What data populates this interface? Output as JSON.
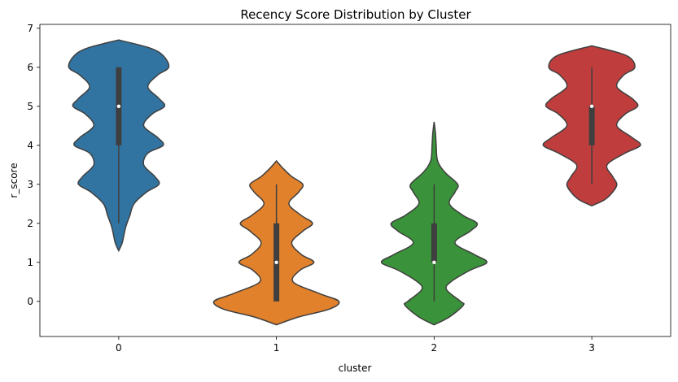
{
  "chart_data": {
    "type": "violin",
    "title": "Recency Score Distribution by Cluster",
    "xlabel": "cluster",
    "ylabel": "r_score",
    "categories": [
      "0",
      "1",
      "2",
      "3"
    ],
    "ylim": [
      -0.9,
      7.1
    ],
    "yticks": [
      0,
      1,
      2,
      3,
      4,
      5,
      6,
      7
    ],
    "grid": false,
    "colors": [
      "#3274a1",
      "#e1812c",
      "#3a923a",
      "#c03d3e"
    ],
    "series": [
      {
        "category": "0",
        "profile": [
          [
            1.3,
            0.0
          ],
          [
            1.5,
            0.05
          ],
          [
            1.9,
            0.1
          ],
          [
            2.2,
            0.16
          ],
          [
            2.5,
            0.22
          ],
          [
            2.8,
            0.4
          ],
          [
            3.0,
            0.58
          ],
          [
            3.2,
            0.52
          ],
          [
            3.5,
            0.36
          ],
          [
            3.8,
            0.42
          ],
          [
            4.0,
            0.64
          ],
          [
            4.2,
            0.56
          ],
          [
            4.5,
            0.36
          ],
          [
            4.8,
            0.48
          ],
          [
            5.0,
            0.66
          ],
          [
            5.2,
            0.58
          ],
          [
            5.5,
            0.42
          ],
          [
            5.8,
            0.56
          ],
          [
            6.0,
            0.72
          ],
          [
            6.3,
            0.64
          ],
          [
            6.5,
            0.44
          ],
          [
            6.7,
            0.0
          ]
        ],
        "q1": 4,
        "median": 5,
        "q3": 6,
        "whisker_low": 2,
        "whisker_high": 6
      },
      {
        "category": "1",
        "profile": [
          [
            -0.6,
            0.0
          ],
          [
            -0.4,
            0.32
          ],
          [
            -0.2,
            0.76
          ],
          [
            0.0,
            0.9
          ],
          [
            0.2,
            0.62
          ],
          [
            0.5,
            0.24
          ],
          [
            0.8,
            0.34
          ],
          [
            1.0,
            0.54
          ],
          [
            1.2,
            0.36
          ],
          [
            1.5,
            0.22
          ],
          [
            1.8,
            0.38
          ],
          [
            2.0,
            0.52
          ],
          [
            2.2,
            0.36
          ],
          [
            2.5,
            0.18
          ],
          [
            2.8,
            0.32
          ],
          [
            3.0,
            0.38
          ],
          [
            3.2,
            0.22
          ],
          [
            3.4,
            0.1
          ],
          [
            3.6,
            0.0
          ]
        ],
        "q1": 0,
        "median": 1,
        "q3": 2,
        "whisker_low": 0,
        "whisker_high": 3
      },
      {
        "category": "2",
        "profile": [
          [
            -0.6,
            0.0
          ],
          [
            -0.4,
            0.22
          ],
          [
            -0.1,
            0.42
          ],
          [
            0.0,
            0.38
          ],
          [
            0.3,
            0.18
          ],
          [
            0.5,
            0.24
          ],
          [
            0.8,
            0.52
          ],
          [
            1.0,
            0.76
          ],
          [
            1.2,
            0.58
          ],
          [
            1.5,
            0.3
          ],
          [
            1.8,
            0.52
          ],
          [
            2.0,
            0.62
          ],
          [
            2.2,
            0.42
          ],
          [
            2.5,
            0.22
          ],
          [
            2.8,
            0.3
          ],
          [
            3.0,
            0.34
          ],
          [
            3.3,
            0.16
          ],
          [
            3.6,
            0.05
          ],
          [
            4.0,
            0.03
          ],
          [
            4.3,
            0.02
          ],
          [
            4.6,
            0.0
          ]
        ],
        "q1": 1,
        "median": 1,
        "q3": 2,
        "whisker_low": 0,
        "whisker_high": 3
      },
      {
        "category": "3",
        "profile": [
          [
            2.45,
            0.0
          ],
          [
            2.6,
            0.18
          ],
          [
            2.8,
            0.3
          ],
          [
            3.0,
            0.36
          ],
          [
            3.2,
            0.3
          ],
          [
            3.5,
            0.22
          ],
          [
            3.8,
            0.48
          ],
          [
            4.0,
            0.7
          ],
          [
            4.2,
            0.58
          ],
          [
            4.5,
            0.36
          ],
          [
            4.8,
            0.48
          ],
          [
            5.0,
            0.66
          ],
          [
            5.2,
            0.58
          ],
          [
            5.5,
            0.36
          ],
          [
            5.8,
            0.46
          ],
          [
            6.0,
            0.62
          ],
          [
            6.3,
            0.5
          ],
          [
            6.55,
            0.0
          ]
        ],
        "q1": 4,
        "median": 5,
        "q3": 5,
        "whisker_low": 3,
        "whisker_high": 6
      }
    ]
  }
}
